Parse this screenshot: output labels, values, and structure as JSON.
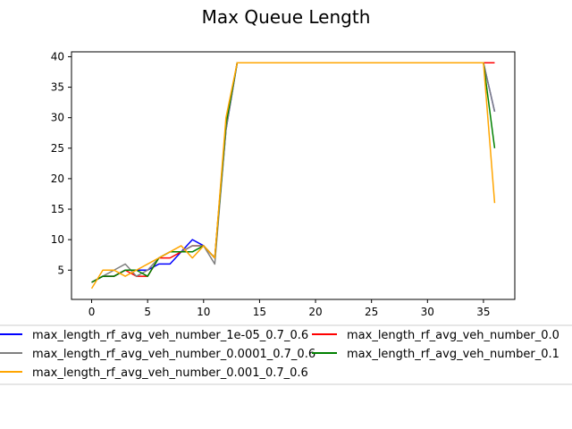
{
  "chart_data": {
    "type": "line",
    "title": "Max Queue Length",
    "xlabel": "",
    "ylabel": "",
    "xlim": [
      -1.8,
      37.8
    ],
    "ylim": [
      0.2,
      40.8
    ],
    "xticks": [
      0,
      5,
      10,
      15,
      20,
      25,
      30,
      35
    ],
    "yticks": [
      5,
      10,
      15,
      20,
      25,
      30,
      35,
      40
    ],
    "grid": false,
    "legend_position": "bottom",
    "series": [
      {
        "name": "max_length_rf_avg_veh_number_1e-05_0.7_0.6",
        "color": "#0000ff",
        "x": [
          0,
          1,
          2,
          3,
          4,
          5,
          6,
          7,
          8,
          9,
          10,
          11,
          12,
          13,
          14,
          15,
          16,
          17,
          18,
          19,
          20,
          21,
          22,
          23,
          24,
          25,
          26,
          27,
          28,
          29,
          30,
          31,
          32,
          33,
          34,
          35,
          36
        ],
        "y": [
          3,
          4,
          4,
          5,
          5,
          5,
          6,
          6,
          8,
          10,
          9,
          7,
          28,
          39,
          39,
          39,
          39,
          39,
          39,
          39,
          39,
          39,
          39,
          39,
          39,
          39,
          39,
          39,
          39,
          39,
          39,
          39,
          39,
          39,
          39,
          39,
          31
        ]
      },
      {
        "name": "max_length_rf_avg_veh_number_0.0",
        "color": "#ff0000",
        "x": [
          0,
          1,
          2,
          3,
          4,
          5,
          6,
          7,
          8,
          9,
          10,
          11,
          12,
          13,
          14,
          15,
          16,
          17,
          18,
          19,
          20,
          21,
          22,
          23,
          24,
          25,
          26,
          27,
          28,
          29,
          30,
          31,
          32,
          33,
          34,
          35,
          36
        ],
        "y": [
          3,
          4,
          4,
          5,
          4,
          4,
          7,
          7,
          8,
          9,
          9,
          7,
          29,
          39,
          39,
          39,
          39,
          39,
          39,
          39,
          39,
          39,
          39,
          39,
          39,
          39,
          39,
          39,
          39,
          39,
          39,
          39,
          39,
          39,
          39,
          39,
          39
        ]
      },
      {
        "name": "max_length_rf_avg_veh_number_0.0001_0.7_0.6",
        "color": "#808080",
        "x": [
          0,
          1,
          2,
          3,
          4,
          5,
          6,
          7,
          8,
          9,
          10,
          11,
          12,
          13,
          14,
          15,
          16,
          17,
          18,
          19,
          20,
          21,
          22,
          23,
          24,
          25,
          26,
          27,
          28,
          29,
          30,
          31,
          32,
          33,
          34,
          35,
          36
        ],
        "y": [
          3,
          4,
          5,
          6,
          4,
          5,
          7,
          8,
          8,
          9,
          9,
          6,
          28,
          39,
          39,
          39,
          39,
          39,
          39,
          39,
          39,
          39,
          39,
          39,
          39,
          39,
          39,
          39,
          39,
          39,
          39,
          39,
          39,
          39,
          39,
          39,
          31
        ]
      },
      {
        "name": "max_length_rf_avg_veh_number_0.1",
        "color": "#008000",
        "x": [
          0,
          1,
          2,
          3,
          4,
          5,
          6,
          7,
          8,
          9,
          10,
          11,
          12,
          13,
          14,
          15,
          16,
          17,
          18,
          19,
          20,
          21,
          22,
          23,
          24,
          25,
          26,
          27,
          28,
          29,
          30,
          31,
          32,
          33,
          34,
          35,
          36
        ],
        "y": [
          3,
          4,
          4,
          5,
          5,
          4,
          7,
          8,
          8,
          8,
          9,
          7,
          29,
          39,
          39,
          39,
          39,
          39,
          39,
          39,
          39,
          39,
          39,
          39,
          39,
          39,
          39,
          39,
          39,
          39,
          39,
          39,
          39,
          39,
          39,
          39,
          25
        ]
      },
      {
        "name": "max_length_rf_avg_veh_number_0.001_0.7_0.6",
        "color": "#ffa500",
        "x": [
          0,
          1,
          2,
          3,
          4,
          5,
          6,
          7,
          8,
          9,
          10,
          11,
          12,
          13,
          14,
          15,
          16,
          17,
          18,
          19,
          20,
          21,
          22,
          23,
          24,
          25,
          26,
          27,
          28,
          29,
          30,
          31,
          32,
          33,
          34,
          35,
          36
        ],
        "y": [
          2,
          5,
          5,
          4,
          5,
          6,
          7,
          8,
          9,
          7,
          9,
          7,
          30,
          39,
          39,
          39,
          39,
          39,
          39,
          39,
          39,
          39,
          39,
          39,
          39,
          39,
          39,
          39,
          39,
          39,
          39,
          39,
          39,
          39,
          39,
          39,
          16
        ]
      }
    ],
    "legend_columns": [
      [
        "max_length_rf_avg_veh_number_1e-05_0.7_0.6",
        "max_length_rf_avg_veh_number_0.0001_0.7_0.6",
        "max_length_rf_avg_veh_number_0.001_0.7_0.6"
      ],
      [
        "max_length_rf_avg_veh_number_0.0",
        "max_length_rf_avg_veh_number_0.1"
      ]
    ]
  }
}
